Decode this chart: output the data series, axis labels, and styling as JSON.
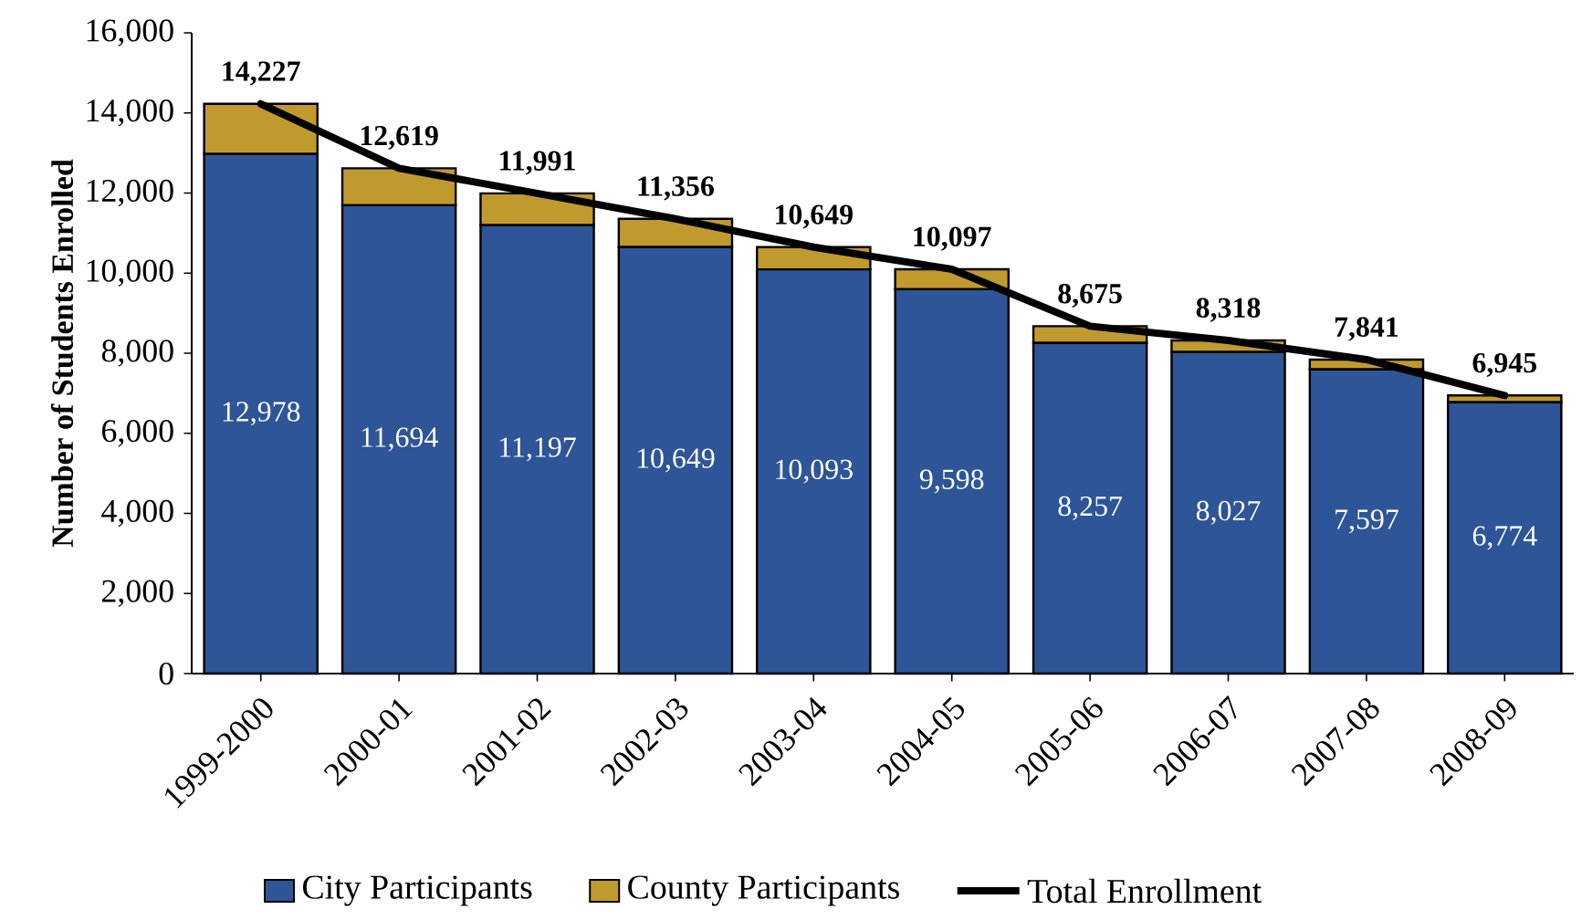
{
  "chart_data": {
    "type": "bar",
    "stacked": true,
    "ylabel": "Number of Students Enrolled",
    "categories": [
      "1999-2000",
      "2000-01",
      "2001-02",
      "2002-03",
      "2003-04",
      "2004-05",
      "2005-06",
      "2006-07",
      "2007-08",
      "2008-09"
    ],
    "series": [
      {
        "name": "City Participants",
        "color": "#2e5597",
        "values": [
          12978,
          11694,
          11197,
          10649,
          10093,
          9598,
          8257,
          8027,
          7597,
          6774
        ],
        "value_labels": [
          "12,978",
          "11,694",
          "11,197",
          "10,649",
          "10,093",
          "9,598",
          "8,257",
          "8,027",
          "7,597",
          "6,774"
        ]
      },
      {
        "name": "County Participants",
        "color": "#c19a2e",
        "values": [
          1249,
          925,
          794,
          707,
          556,
          499,
          418,
          291,
          244,
          171
        ]
      },
      {
        "name": "Total Enrollment",
        "type": "line",
        "color": "#000000",
        "values": [
          14227,
          12619,
          11991,
          11356,
          10649,
          10097,
          8675,
          8318,
          7841,
          6945
        ],
        "value_labels": [
          "14,227",
          "12,619",
          "11,991",
          "11,356",
          "10,649",
          "10,097",
          "8,675",
          "8,318",
          "7,841",
          "6,945"
        ]
      }
    ],
    "ylim": [
      0,
      16000
    ],
    "yticks": [
      0,
      {
        "value": 2000,
        "label": "2,000"
      },
      {
        "value": 4000,
        "label": "4,000"
      },
      {
        "value": 6000,
        "label": "6,000"
      },
      {
        "value": 8000,
        "label": "8,000"
      },
      {
        "value": 10000,
        "label": "10,000"
      },
      {
        "value": 12000,
        "label": "12,000"
      },
      {
        "value": 14000,
        "label": "14,000"
      },
      {
        "value": 16000,
        "label": "16,000"
      }
    ],
    "legend": "bottom",
    "grid": false
  }
}
